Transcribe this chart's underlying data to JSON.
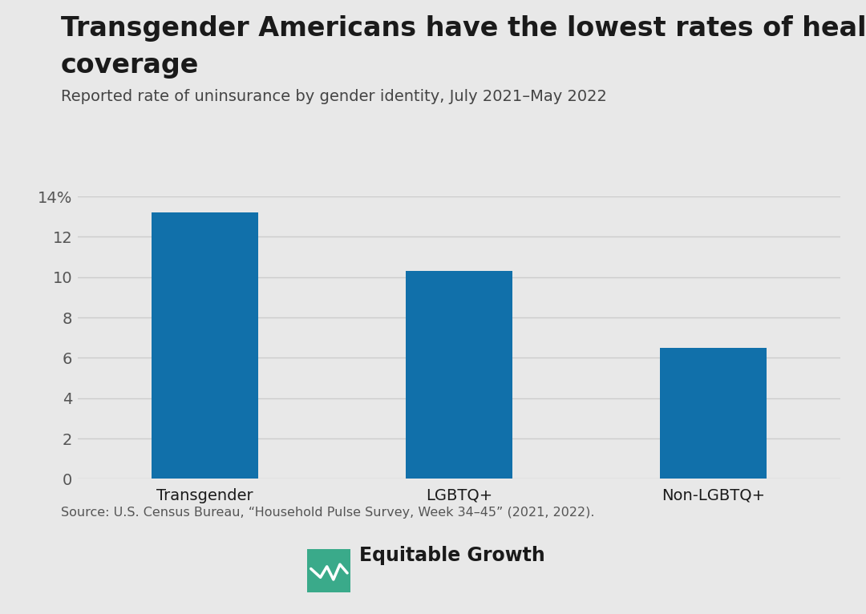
{
  "categories": [
    "Transgender",
    "LGBTQ+",
    "Non-LGBTQ+"
  ],
  "values": [
    13.2,
    10.3,
    6.5
  ],
  "bar_color": "#1170aa",
  "background_color": "#e8e8e8",
  "title_line1": "Transgender Americans have the lowest rates of health insurance",
  "title_line2": "coverage",
  "subtitle": "Reported rate of uninsurance by gender identity, July 2021–May 2022",
  "source": "Source: U.S. Census Bureau, “Household Pulse Survey, Week 34–45” (2021, 2022).",
  "logo_text": "Equitable Growth",
  "logo_color": "#3aaa8a",
  "ylim": [
    0,
    14
  ],
  "yticks": [
    0,
    2,
    4,
    6,
    8,
    10,
    12,
    14
  ],
  "ytick_labels": [
    "0",
    "2",
    "4",
    "6",
    "8",
    "10",
    "12",
    "14%"
  ],
  "title_fontsize": 24,
  "subtitle_fontsize": 14,
  "tick_fontsize": 14,
  "xtick_fontsize": 14,
  "source_fontsize": 11.5,
  "logo_fontsize": 17,
  "bar_width": 0.42,
  "grid_color": "#cccccc",
  "text_color": "#1a1a1a",
  "tick_color": "#555555"
}
